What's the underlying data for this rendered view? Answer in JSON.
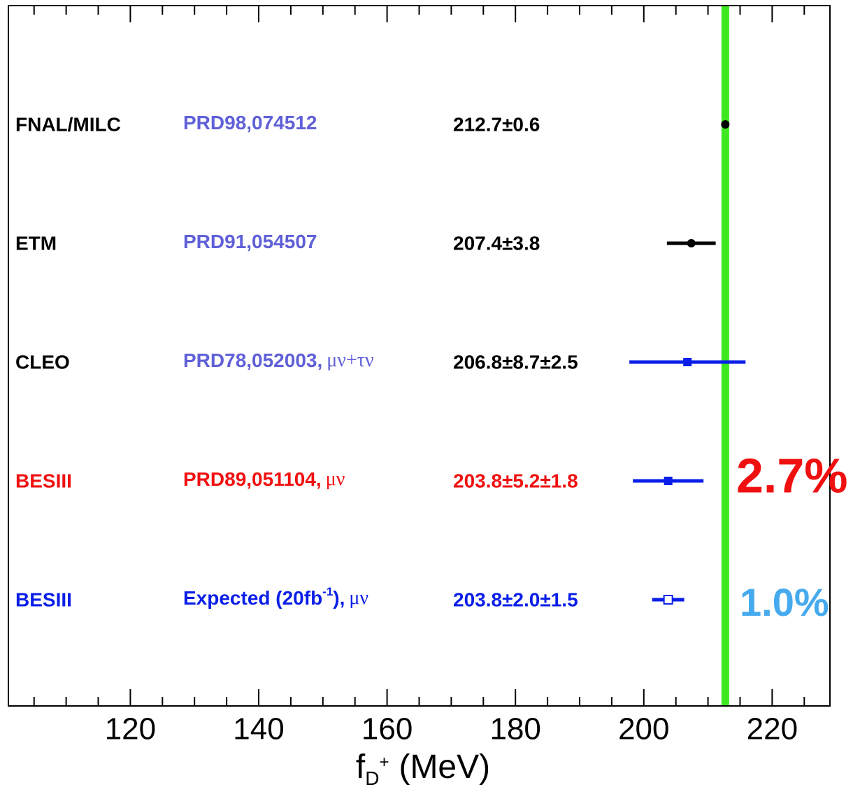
{
  "chart_data": {
    "type": "forest",
    "x_label": {
      "symbol": "f",
      "subscript": "D",
      "superscript": "+",
      "unit": "(MeV)"
    },
    "xlim": [
      101,
      229
    ],
    "xticks": [
      120,
      140,
      160,
      180,
      200,
      220
    ],
    "xminorticks": [
      105,
      110,
      115,
      125,
      130,
      135,
      145,
      150,
      155,
      165,
      170,
      175,
      185,
      190,
      195,
      205,
      210,
      215,
      225
    ],
    "band_color": "#3de821",
    "entries": [
      {
        "name": "FNAL/MILC",
        "reference": [
          "PRD98,074512"
        ],
        "value": 212.7,
        "stat_error": 0.6,
        "syst_error": null,
        "value_label": "212.7±0.6",
        "text_color": "#000000",
        "reference_color": "#6060d8",
        "marker_color": "#000000",
        "marker": "circle",
        "band": true
      },
      {
        "name": "ETM",
        "reference": [
          "PRD91,054507"
        ],
        "value": 207.4,
        "stat_error": 3.8,
        "syst_error": null,
        "value_label": "207.4±3.8",
        "text_color": "#000000",
        "reference_color": "#6060d8",
        "marker_color": "#000000",
        "marker": "circle"
      },
      {
        "name": "CLEO",
        "reference": [
          "PRD78,052003,",
          {
            "text": "μν+τν",
            "greek": true
          }
        ],
        "value": 206.8,
        "stat_error": 8.7,
        "syst_error": 2.5,
        "value_label": "206.8±8.7±2.5",
        "text_color": "#000000",
        "reference_color": "#6060d8",
        "marker_color": "#0a1ee8",
        "marker": "square"
      },
      {
        "name": "BESIII",
        "reference": [
          "PRD89,051104,",
          {
            "text": "μν",
            "greek": true
          }
        ],
        "value": 203.8,
        "stat_error": 5.2,
        "syst_error": 1.8,
        "value_label": "203.8±5.2±1.8",
        "text_color": "#f01010",
        "reference_color": "#f01010",
        "marker_color": "#0a1ee8",
        "marker": "square"
      },
      {
        "name": "BESIII",
        "reference": [
          "Expected (20fb",
          {
            "text": "-1",
            "sup": true
          },
          "),",
          {
            "text": "μν",
            "greek": true
          }
        ],
        "value": 203.8,
        "stat_error": 2.0,
        "syst_error": 1.5,
        "value_label": "203.8±2.0±1.5",
        "text_color": "#0a1ee8",
        "reference_color": "#0a1ee8",
        "marker_color": "#0a1ee8",
        "marker": "open-square"
      }
    ],
    "annotations": [
      {
        "text": "2.7%",
        "entry": 3,
        "color": "#f01010"
      },
      {
        "text": "1.0%",
        "entry": 4,
        "color": "#45aaee"
      }
    ]
  }
}
